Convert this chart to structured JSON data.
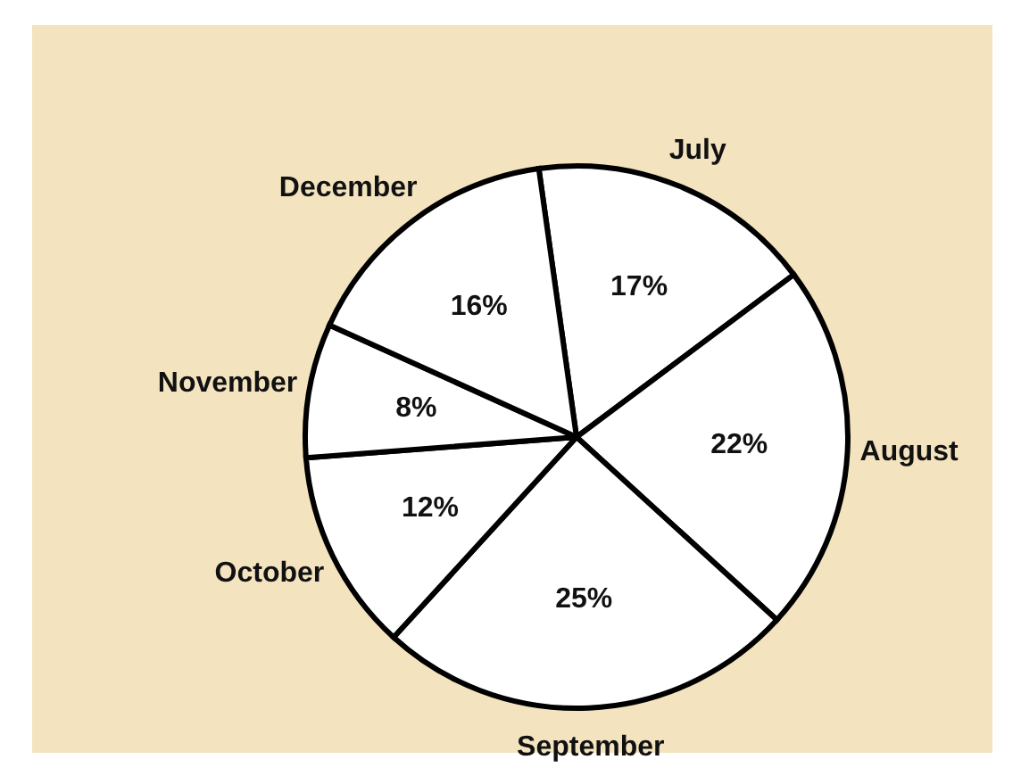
{
  "chart_data": {
    "type": "pie",
    "categories": [
      "July",
      "August",
      "September",
      "October",
      "November",
      "December"
    ],
    "values": [
      17,
      22,
      25,
      12,
      8,
      16
    ],
    "value_labels": [
      "17%",
      "22%",
      "25%",
      "12%",
      "8%",
      "16%"
    ],
    "colors": [
      "#ffffff",
      "#ffffff",
      "#ffffff",
      "#ffffff",
      "#ffffff",
      "#ffffff"
    ]
  }
}
